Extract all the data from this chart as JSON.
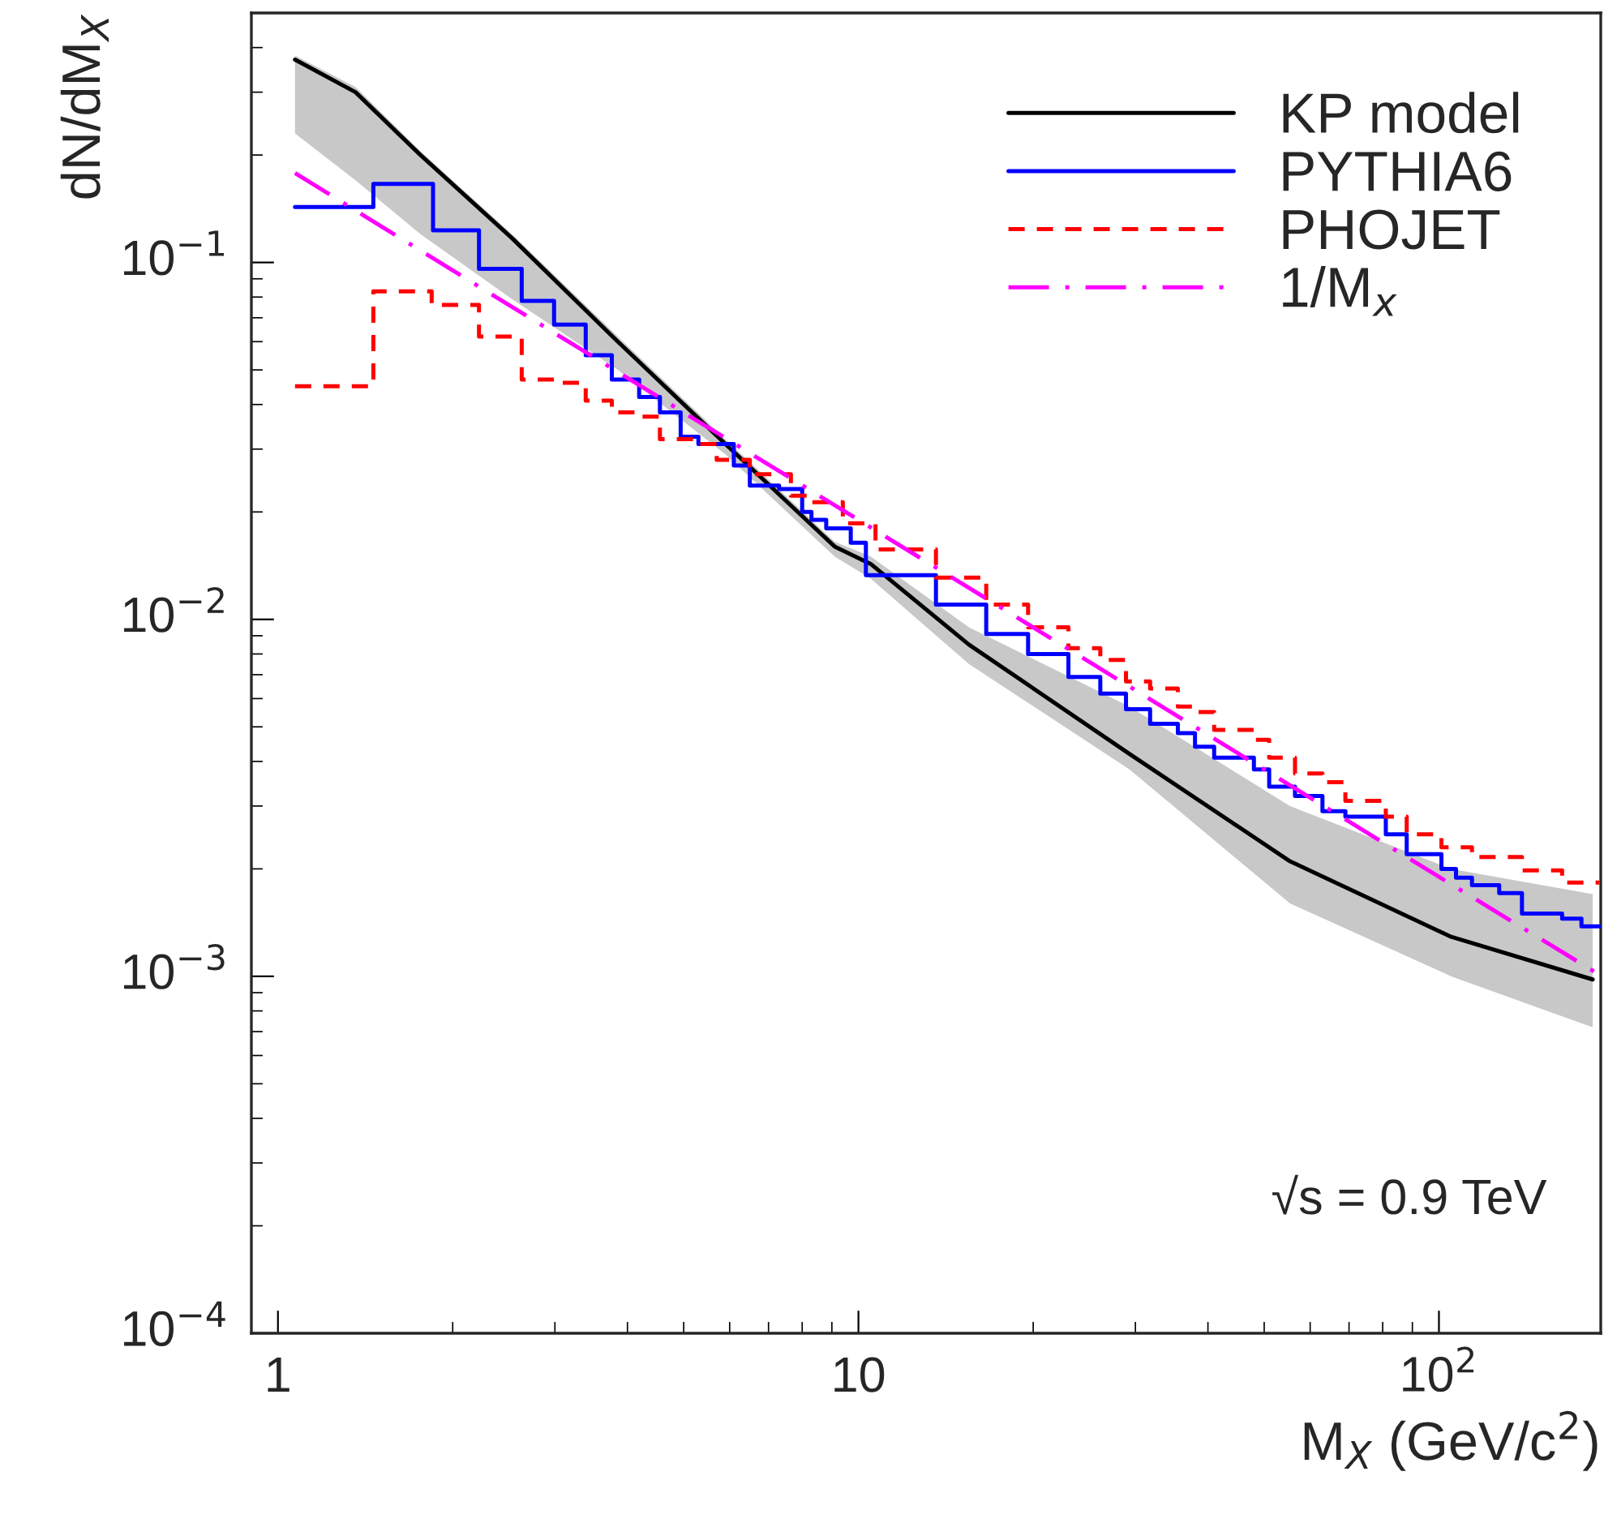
{
  "chart_data": {
    "type": "line",
    "xlabel": "M$_{X}$ (GeV/c$^{2}$)",
    "ylabel": "dN/dM$_{X}$",
    "log": "xy",
    "xlim": [
      0.9,
      190
    ],
    "ylim": [
      0.0001,
      0.5
    ],
    "xticks": [
      1,
      10,
      {
        "value": 100,
        "label": "10$^{2}$"
      }
    ],
    "yticks": [
      {
        "value": 0.0001,
        "label": "10$^{−4}$"
      },
      {
        "value": 0.001,
        "label": "10$^{−3}$"
      },
      {
        "value": 0.01,
        "label": "10$^{−2}$"
      },
      {
        "value": 0.1,
        "label": "10$^{−1}$"
      }
    ],
    "grid": false,
    "legend": "top right",
    "annotations": [
      "√s = 0.9 TeV"
    ],
    "series": [
      {
        "name": "KP model",
        "color": "#000000",
        "line_style": "solid",
        "x": [
          1.07,
          1.36,
          1.76,
          2.53,
          3.85,
          5.9,
          9.1,
          10.5,
          15.5,
          29.3,
          55.4,
          105,
          184
        ],
        "values": [
          0.37,
          0.3,
          0.2,
          0.117,
          0.06,
          0.031,
          0.016,
          0.0143,
          0.0085,
          0.0042,
          0.0021,
          0.00129,
          0.00098
        ],
        "lower": [
          0.23,
          0.17,
          0.12,
          0.079,
          0.05,
          0.029,
          0.015,
          0.013,
          0.0075,
          0.0038,
          0.0016,
          0.001,
          0.00072
        ],
        "upper": [
          0.38,
          0.31,
          0.205,
          0.12,
          0.062,
          0.032,
          0.0165,
          0.015,
          0.0095,
          0.0057,
          0.003,
          0.002,
          0.0017
        ]
      },
      {
        "name": "PYTHIA6",
        "type": "step",
        "color": "#0000ff",
        "line_style": "solid",
        "x": [
          1.07,
          1.46,
          1.85,
          2.22,
          2.63,
          2.99,
          3.39,
          3.76,
          4.19,
          4.55,
          4.94,
          5.3,
          6.1,
          6.5,
          7.3,
          8.0,
          8.3,
          8.8,
          9.7,
          10.3,
          13.6,
          16.6,
          19.6,
          23.0,
          26.1,
          28.9,
          31.8,
          35.5,
          38,
          41,
          48,
          51,
          56.5,
          63,
          69,
          81,
          88,
          101,
          107,
          114,
          127,
          139,
          163,
          176,
          189
        ],
        "values": [
          0.143,
          0.166,
          0.123,
          0.096,
          0.078,
          0.067,
          0.055,
          0.047,
          0.042,
          0.038,
          0.0325,
          0.031,
          0.027,
          0.0237,
          0.0232,
          0.02,
          0.019,
          0.018,
          0.0164,
          0.0133,
          0.011,
          0.0091,
          0.008,
          0.0069,
          0.0062,
          0.0056,
          0.0051,
          0.0048,
          0.0044,
          0.0041,
          0.0038,
          0.0034,
          0.0032,
          0.0029,
          0.0028,
          0.0025,
          0.0022,
          0.002,
          0.00189,
          0.0018,
          0.00171,
          0.0015,
          0.00145,
          0.00138,
          0.00138
        ]
      },
      {
        "name": "PHOJET",
        "type": "step",
        "color": "#ff0000",
        "line_style": "dashed",
        "x": [
          1.07,
          1.46,
          1.84,
          2.22,
          2.63,
          2.99,
          3.39,
          3.76,
          4.19,
          4.55,
          5.3,
          5.7,
          6.5,
          7.65,
          8.3,
          9.4,
          10.7,
          13.6,
          16.6,
          19.6,
          23,
          26.1,
          28.9,
          31.8,
          35.5,
          38,
          41,
          48,
          51,
          56.5,
          63,
          69,
          81,
          88,
          101,
          114,
          139,
          163,
          189
        ],
        "values": [
          0.045,
          0.083,
          0.076,
          0.062,
          0.047,
          0.046,
          0.041,
          0.038,
          0.037,
          0.032,
          0.031,
          0.028,
          0.0255,
          0.0222,
          0.0213,
          0.0186,
          0.0157,
          0.0131,
          0.011,
          0.0095,
          0.0083,
          0.0077,
          0.0067,
          0.0064,
          0.0057,
          0.0055,
          0.0049,
          0.0046,
          0.0041,
          0.0037,
          0.0035,
          0.0031,
          0.0028,
          0.0025,
          0.0023,
          0.00216,
          0.00198,
          0.00183,
          0.00183
        ]
      },
      {
        "name": "1/M$_{x}$",
        "color": "#ff00ff",
        "line_style": "dashdot",
        "x": [
          1.07,
          2,
          5,
          10,
          20,
          50,
          100,
          189
        ],
        "values": [
          0.178,
          0.095,
          0.038,
          0.019,
          0.0095,
          0.0038,
          0.0019,
          0.00101
        ]
      }
    ]
  }
}
